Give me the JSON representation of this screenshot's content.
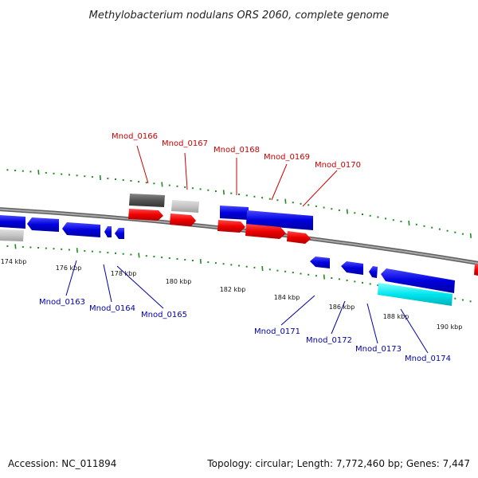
{
  "title": "Methylobacterium nodulans ORS 2060, complete genome",
  "footer": {
    "accession": "Accession: NC_011894",
    "summary": "Topology: circular; Length: 7,772,460 bp; Genes: 7,447"
  },
  "colors": {
    "forward_gene": "#ee0000",
    "reverse_gene": "#0000dd",
    "rna_gene": "#00e5ee",
    "pseudo_dark": "#555555",
    "pseudo_light": "#c4c4c4",
    "backbone": "#808080",
    "tick": "#228b22"
  },
  "tick_labels": [
    "174 kbp",
    "176 kbp",
    "178 kbp",
    "180 kbp",
    "182 kbp",
    "184 kbp",
    "186 kbp",
    "188 kbp",
    "190 kbp"
  ],
  "genes_top": [
    "Mnod_0166",
    "Mnod_0167",
    "Mnod_0168",
    "Mnod_0169",
    "Mnod_0170"
  ],
  "genes_bottom": [
    "Mnod_0163",
    "Mnod_0164",
    "Mnod_0165",
    "Mnod_0171",
    "Mnod_0172",
    "Mnod_0173",
    "Mnod_0174"
  ]
}
